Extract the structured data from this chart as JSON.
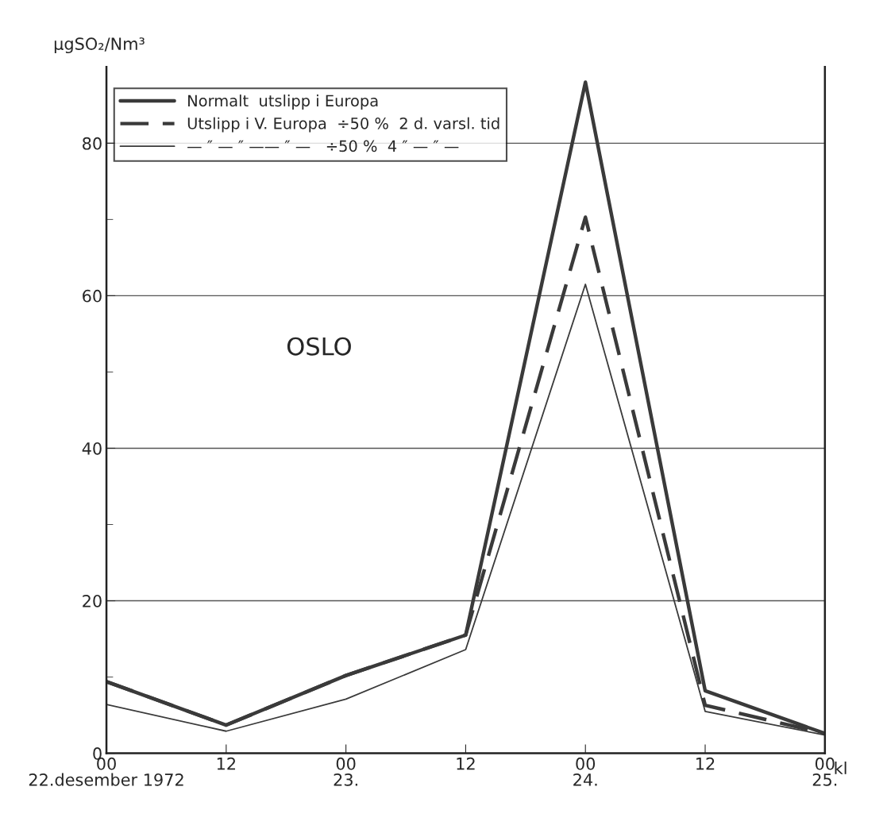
{
  "chart_data": {
    "type": "line",
    "ylabel": "µgSO₂/Nm³",
    "xlabel": "kl",
    "categories": [
      "00\n22.desember 1972",
      "12\n",
      "00\n23.",
      "12\n",
      "00\n24.",
      "12\n",
      "00\n25."
    ],
    "ylim": [
      0,
      90
    ],
    "yticks": [
      0,
      {
        "value": 10,
        "label": null
      },
      20,
      {
        "value": 30,
        "label": null
      },
      40,
      {
        "value": 50,
        "label": null
      },
      60,
      {
        "value": 70,
        "label": null
      },
      80
    ],
    "grid": "y",
    "legend": "top left",
    "series": [
      {
        "name": "Normalt  utslipp i Europa",
        "color": "#3a3a3a",
        "line_style": "solid",
        "values": [
          9.4,
          3.7,
          10.2,
          15.5,
          88,
          8.2,
          2.6
        ]
      },
      {
        "name": "Utslipp i V. Europa  ÷50 %  2 d. varsl. tid",
        "color": "#3a3a3a",
        "line_style": "dashed",
        "values": [
          9.4,
          3.7,
          10.2,
          15.5,
          70.3,
          6.3,
          2.6
        ]
      },
      {
        "name": "— ″ — ″ —— ″ —   ÷50 %  4 ″ — ″ —",
        "color": "#3a3a3a",
        "line_style": "solid",
        "values": [
          6.4,
          2.9,
          7.1,
          13.6,
          61.5,
          5.5,
          2.4
        ]
      }
    ],
    "annotations": [
      "OSLO"
    ]
  }
}
